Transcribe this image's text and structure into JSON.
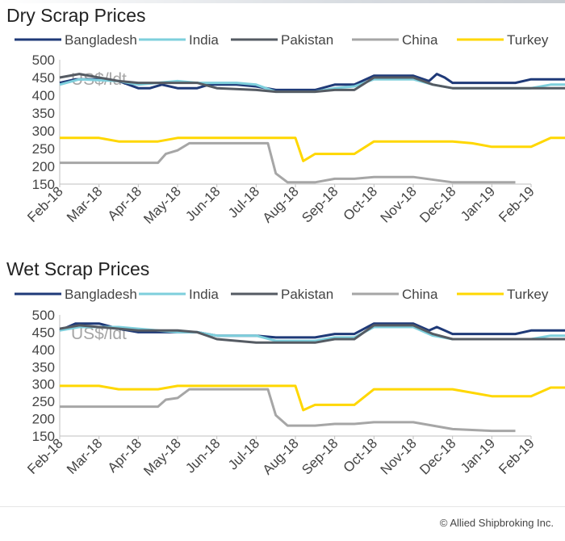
{
  "page": {
    "copyright": "© Allied Shipbroking Inc."
  },
  "chart_data": [
    {
      "type": "line",
      "title": "Dry Scrap Prices",
      "unit_label": "US$/ldt",
      "legend_position": "top",
      "ylim": [
        150,
        500
      ],
      "yticks": [
        150,
        200,
        250,
        300,
        350,
        400,
        450,
        500
      ],
      "xticks": [
        "Feb-18",
        "Mar-18",
        "Apr-18",
        "May-18",
        "Jun-18",
        "Jul-18",
        "Aug-18",
        "Sep-18",
        "Oct-18",
        "Nov-18",
        "Dec-18",
        "Jan-19",
        "Feb-19"
      ],
      "series": [
        {
          "name": "Bangladesh",
          "color": "#1f3a78",
          "points": [
            [
              0,
              435
            ],
            [
              0.4,
              445
            ],
            [
              1,
              445
            ],
            [
              1.5,
              440
            ],
            [
              2,
              420
            ],
            [
              2.3,
              420
            ],
            [
              2.6,
              430
            ],
            [
              3,
              420
            ],
            [
              3.5,
              420
            ],
            [
              3.8,
              430
            ],
            [
              4.5,
              430
            ],
            [
              5,
              425
            ],
            [
              5.5,
              415
            ],
            [
              6.5,
              415
            ],
            [
              7,
              430
            ],
            [
              7.5,
              430
            ],
            [
              8,
              455
            ],
            [
              9,
              455
            ],
            [
              9.4,
              440
            ],
            [
              9.6,
              460
            ],
            [
              9.8,
              450
            ],
            [
              10,
              435
            ],
            [
              11,
              435
            ],
            [
              11.6,
              435
            ],
            [
              12,
              445
            ],
            [
              13,
              445
            ]
          ]
        },
        {
          "name": "India",
          "color": "#7ecfdc",
          "points": [
            [
              0,
              430
            ],
            [
              0.5,
              445
            ],
            [
              1.5,
              440
            ],
            [
              2,
              430
            ],
            [
              3,
              440
            ],
            [
              3.5,
              435
            ],
            [
              4,
              435
            ],
            [
              4.5,
              435
            ],
            [
              5,
              430
            ],
            [
              5.5,
              410
            ],
            [
              6.5,
              410
            ],
            [
              7,
              420
            ],
            [
              7.5,
              425
            ],
            [
              8,
              445
            ],
            [
              9,
              445
            ],
            [
              9.5,
              430
            ],
            [
              10,
              420
            ],
            [
              11,
              420
            ],
            [
              12,
              420
            ],
            [
              12.5,
              430
            ],
            [
              13,
              430
            ]
          ]
        },
        {
          "name": "Pakistan",
          "color": "#555b63",
          "points": [
            [
              0,
              450
            ],
            [
              0.5,
              460
            ],
            [
              1.5,
              440
            ],
            [
              2,
              435
            ],
            [
              2.5,
              435
            ],
            [
              3,
              435
            ],
            [
              3.5,
              435
            ],
            [
              4,
              420
            ],
            [
              5,
              415
            ],
            [
              5.5,
              410
            ],
            [
              6.5,
              410
            ],
            [
              7,
              415
            ],
            [
              7.5,
              415
            ],
            [
              8,
              450
            ],
            [
              9,
              450
            ],
            [
              9.5,
              430
            ],
            [
              10,
              420
            ],
            [
              10.5,
              420
            ],
            [
              11,
              420
            ],
            [
              12,
              420
            ],
            [
              13,
              420
            ]
          ]
        },
        {
          "name": "China",
          "color": "#a6a6a6",
          "points": [
            [
              0,
              210
            ],
            [
              1,
              210
            ],
            [
              2,
              210
            ],
            [
              2.5,
              210
            ],
            [
              2.7,
              235
            ],
            [
              3,
              245
            ],
            [
              3.3,
              265
            ],
            [
              4,
              265
            ],
            [
              4.8,
              265
            ],
            [
              5.3,
              265
            ],
            [
              5.5,
              180
            ],
            [
              5.8,
              155
            ],
            [
              6.5,
              155
            ],
            [
              7,
              165
            ],
            [
              7.5,
              165
            ],
            [
              8,
              170
            ],
            [
              9,
              170
            ],
            [
              10,
              155
            ],
            [
              11,
              155
            ],
            [
              11.6,
              155
            ]
          ]
        },
        {
          "name": "Turkey",
          "color": "#ffd700",
          "points": [
            [
              0,
              280
            ],
            [
              1,
              280
            ],
            [
              1.5,
              270
            ],
            [
              2,
              270
            ],
            [
              2.5,
              270
            ],
            [
              3,
              280
            ],
            [
              4,
              280
            ],
            [
              5,
              280
            ],
            [
              6,
              280
            ],
            [
              6.2,
              215
            ],
            [
              6.5,
              235
            ],
            [
              7,
              235
            ],
            [
              7.5,
              235
            ],
            [
              8,
              270
            ],
            [
              9,
              270
            ],
            [
              10,
              270
            ],
            [
              10.5,
              265
            ],
            [
              11,
              255
            ],
            [
              12,
              255
            ],
            [
              12.5,
              280
            ],
            [
              13,
              280
            ]
          ]
        }
      ]
    },
    {
      "type": "line",
      "title": "Wet Scrap Prices",
      "unit_label": "US$/ldt",
      "legend_position": "top",
      "ylim": [
        150,
        500
      ],
      "yticks": [
        150,
        200,
        250,
        300,
        350,
        400,
        450,
        500
      ],
      "xticks": [
        "Feb-18",
        "Mar-18",
        "Apr-18",
        "May-18",
        "Jun-18",
        "Jul-18",
        "Aug-18",
        "Sep-18",
        "Oct-18",
        "Nov-18",
        "Dec-18",
        "Jan-19",
        "Feb-19"
      ],
      "series": [
        {
          "name": "Bangladesh",
          "color": "#1f3a78",
          "points": [
            [
              0,
              455
            ],
            [
              0.4,
              475
            ],
            [
              1,
              475
            ],
            [
              1.5,
              460
            ],
            [
              2,
              450
            ],
            [
              2.5,
              450
            ],
            [
              3,
              450
            ],
            [
              3.5,
              450
            ],
            [
              4,
              440
            ],
            [
              5,
              440
            ],
            [
              5.5,
              435
            ],
            [
              6.5,
              435
            ],
            [
              7,
              445
            ],
            [
              7.5,
              445
            ],
            [
              8,
              475
            ],
            [
              9,
              475
            ],
            [
              9.4,
              455
            ],
            [
              9.6,
              465
            ],
            [
              9.8,
              455
            ],
            [
              10,
              445
            ],
            [
              11,
              445
            ],
            [
              11.6,
              445
            ],
            [
              12,
              455
            ],
            [
              13,
              455
            ]
          ]
        },
        {
          "name": "India",
          "color": "#7ecfdc",
          "points": [
            [
              0,
              455
            ],
            [
              0.5,
              465
            ],
            [
              1.5,
              465
            ],
            [
              2,
              460
            ],
            [
              3,
              450
            ],
            [
              3.5,
              450
            ],
            [
              4,
              440
            ],
            [
              5,
              440
            ],
            [
              5.5,
              425
            ],
            [
              6.5,
              425
            ],
            [
              7,
              435
            ],
            [
              7.5,
              435
            ],
            [
              8,
              465
            ],
            [
              9,
              465
            ],
            [
              9.5,
              440
            ],
            [
              10,
              430
            ],
            [
              11,
              430
            ],
            [
              12,
              430
            ],
            [
              12.5,
              440
            ],
            [
              13,
              440
            ]
          ]
        },
        {
          "name": "Pakistan",
          "color": "#555b63",
          "points": [
            [
              0,
              460
            ],
            [
              0.5,
              470
            ],
            [
              1.5,
              460
            ],
            [
              2,
              455
            ],
            [
              2.5,
              455
            ],
            [
              3,
              455
            ],
            [
              3.5,
              450
            ],
            [
              4,
              430
            ],
            [
              5,
              420
            ],
            [
              5.5,
              420
            ],
            [
              6.5,
              420
            ],
            [
              7,
              430
            ],
            [
              7.5,
              430
            ],
            [
              8,
              470
            ],
            [
              9,
              470
            ],
            [
              9.5,
              445
            ],
            [
              10,
              430
            ],
            [
              10.5,
              430
            ],
            [
              11,
              430
            ],
            [
              12,
              430
            ],
            [
              13,
              430
            ]
          ]
        },
        {
          "name": "China",
          "color": "#a6a6a6",
          "points": [
            [
              0,
              235
            ],
            [
              1,
              235
            ],
            [
              2,
              235
            ],
            [
              2.5,
              235
            ],
            [
              2.7,
              255
            ],
            [
              3,
              260
            ],
            [
              3.3,
              285
            ],
            [
              4,
              285
            ],
            [
              4.8,
              285
            ],
            [
              5.3,
              285
            ],
            [
              5.5,
              210
            ],
            [
              5.8,
              180
            ],
            [
              6.5,
              180
            ],
            [
              7,
              185
            ],
            [
              7.5,
              185
            ],
            [
              8,
              190
            ],
            [
              9,
              190
            ],
            [
              10,
              170
            ],
            [
              11,
              165
            ],
            [
              11.6,
              165
            ]
          ]
        },
        {
          "name": "Turkey",
          "color": "#ffd700",
          "points": [
            [
              0,
              295
            ],
            [
              1,
              295
            ],
            [
              1.5,
              285
            ],
            [
              2,
              285
            ],
            [
              2.5,
              285
            ],
            [
              3,
              295
            ],
            [
              4,
              295
            ],
            [
              5,
              295
            ],
            [
              6,
              295
            ],
            [
              6.2,
              225
            ],
            [
              6.5,
              240
            ],
            [
              7,
              240
            ],
            [
              7.5,
              240
            ],
            [
              8,
              285
            ],
            [
              9,
              285
            ],
            [
              10,
              285
            ],
            [
              10.5,
              275
            ],
            [
              11,
              265
            ],
            [
              12,
              265
            ],
            [
              12.5,
              290
            ],
            [
              13,
              290
            ]
          ]
        }
      ]
    }
  ]
}
